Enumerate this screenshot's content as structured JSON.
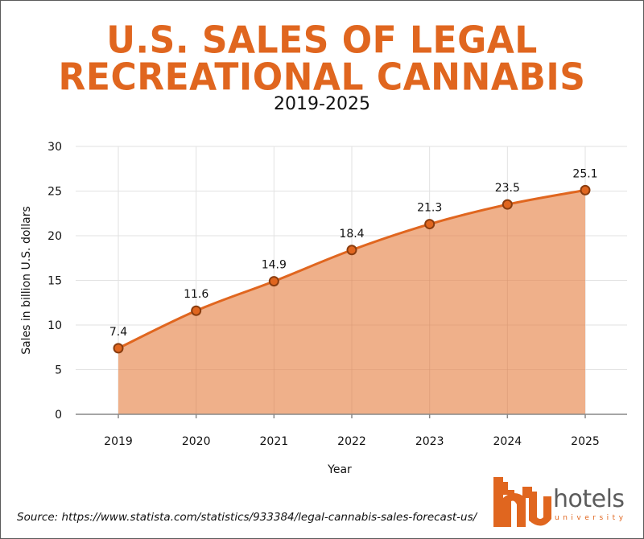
{
  "header": {
    "title_line1": "U.S. SALES OF LEGAL",
    "title_line2": "RECREATIONAL CANNABIS",
    "subtitle": "2019-2025"
  },
  "colors": {
    "accent": "#e0661f",
    "fill": "#efb08a",
    "marker_stroke": "#8a3d0f",
    "grid": "#e2e2e2",
    "axis": "#888888"
  },
  "chart_data": {
    "type": "area",
    "title": "U.S. SALES OF LEGAL RECREATIONAL CANNABIS",
    "subtitle": "2019-2025",
    "xlabel": "Year",
    "ylabel": "Sales in billion U.S. dollars",
    "categories": [
      "2019",
      "2020",
      "2021",
      "2022",
      "2023",
      "2024",
      "2025"
    ],
    "values": [
      7.4,
      11.6,
      14.9,
      18.4,
      21.3,
      23.5,
      25.1
    ],
    "data_labels": [
      "7.4",
      "11.6",
      "14.9",
      "18.4",
      "21.3",
      "23.5",
      "25.1"
    ],
    "ylim": [
      0,
      30
    ],
    "yticks": [
      0,
      5,
      10,
      15,
      20,
      25,
      30
    ],
    "grid": true,
    "legend": "none",
    "line_style": "smooth"
  },
  "footer": {
    "source": "Source: https://www.statista.com/statistics/933384/legal-cannabis-sales-forecast-us/"
  },
  "logo": {
    "word": "hotels",
    "sub": "university"
  }
}
